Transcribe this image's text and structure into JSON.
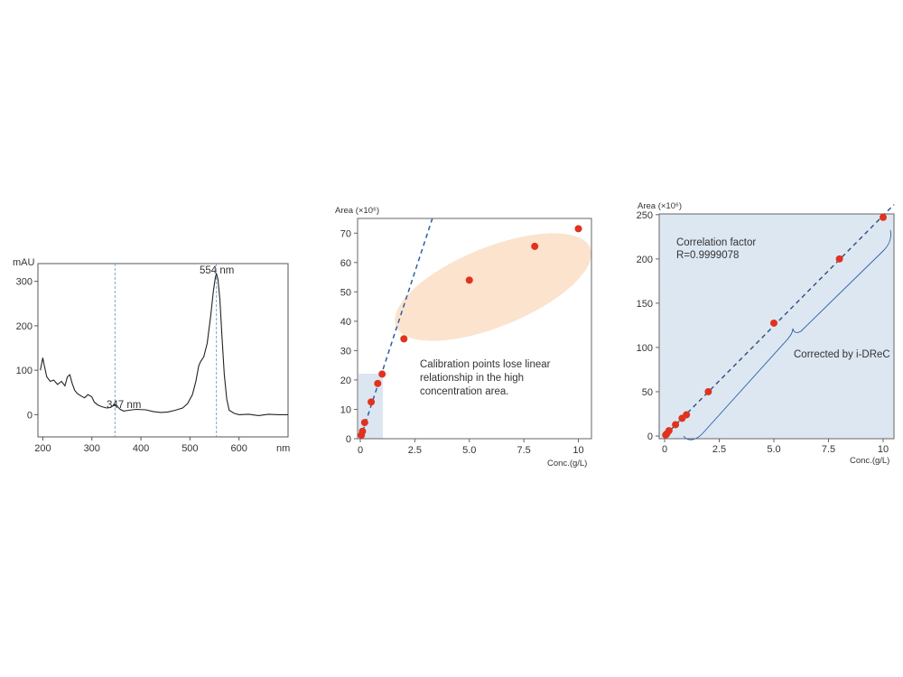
{
  "chart_data": [
    {
      "type": "line",
      "ylabel": "mAU",
      "xlabel": "nm",
      "xlim": [
        190,
        700
      ],
      "ylim": [
        -50,
        340
      ],
      "xticks": [
        200,
        300,
        400,
        500,
        600
      ],
      "yticks": [
        0,
        100,
        200,
        300
      ],
      "annotations": [
        "347 nm",
        "554 nm"
      ],
      "markers": [
        347,
        554
      ],
      "series": [
        {
          "x": [
            195,
            200,
            203,
            208,
            215,
            222,
            230,
            238,
            245,
            250,
            255,
            260,
            265,
            270,
            278,
            285,
            292,
            300,
            305,
            312,
            320,
            330,
            338,
            343,
            347,
            352,
            358,
            365,
            375,
            390,
            410,
            425,
            440,
            455,
            470,
            485,
            495,
            505,
            512,
            518,
            522,
            528,
            535,
            542,
            548,
            552,
            554,
            557,
            561,
            565,
            570,
            575,
            580,
            590,
            600,
            620,
            640,
            660,
            680,
            700
          ],
          "y": [
            100,
            128,
            110,
            85,
            75,
            78,
            68,
            75,
            65,
            85,
            90,
            70,
            55,
            48,
            42,
            38,
            45,
            40,
            28,
            22,
            18,
            15,
            16,
            20,
            23,
            18,
            12,
            8,
            10,
            12,
            11,
            7,
            5,
            6,
            10,
            15,
            25,
            45,
            75,
            110,
            120,
            130,
            160,
            220,
            280,
            310,
            317,
            305,
            260,
            180,
            90,
            35,
            10,
            3,
            0,
            1,
            -2,
            1,
            0,
            0
          ]
        }
      ]
    },
    {
      "type": "scatter",
      "ylabel": "Area (×10⁶)",
      "xlabel": "Conc.(g/L)",
      "xlim": [
        0,
        10.6
      ],
      "ylim": [
        0,
        75
      ],
      "xticks": [
        "0",
        "2.5",
        "5.0",
        "7.5",
        "10"
      ],
      "yticks": [
        "0",
        "10",
        "20",
        "30",
        "40",
        "50",
        "60",
        "70"
      ],
      "points": {
        "x": [
          0.05,
          0.1,
          0.2,
          0.5,
          0.8,
          1.0,
          2.0,
          5.0,
          8.0,
          10.0
        ],
        "y": [
          1.2,
          2.5,
          5.5,
          12.5,
          18.8,
          22.0,
          34.0,
          54.0,
          65.5,
          71.5
        ]
      },
      "fit_line": {
        "slope": 22.7,
        "intercept": 0
      },
      "annotation": "Calibration points lose linear relationship in the high concentration area."
    },
    {
      "type": "scatter",
      "ylabel": "Area (×10⁶)",
      "xlabel": "Conc.(g/L)",
      "xlim": [
        -0.2,
        10.6
      ],
      "ylim": [
        0,
        260
      ],
      "xticks": [
        "0",
        "2.5",
        "5.0",
        "7.5",
        "10"
      ],
      "yticks": [
        "0",
        "50",
        "100",
        "150",
        "200",
        "250"
      ],
      "points": {
        "x": [
          0.05,
          0.1,
          0.2,
          0.5,
          0.8,
          1.0,
          2.0,
          5.0,
          8.0,
          10.0
        ],
        "y": [
          1.2,
          2.5,
          6.0,
          12.8,
          20.0,
          24.0,
          50.0,
          127.5,
          200.0,
          247.0
        ]
      },
      "fit_line": {
        "slope": 24.9,
        "intercept": 0
      },
      "annotation_title": "Correlation factor",
      "annotation_value": "R=0.9999078",
      "brace_label": "Corrected by i-DReC"
    }
  ]
}
